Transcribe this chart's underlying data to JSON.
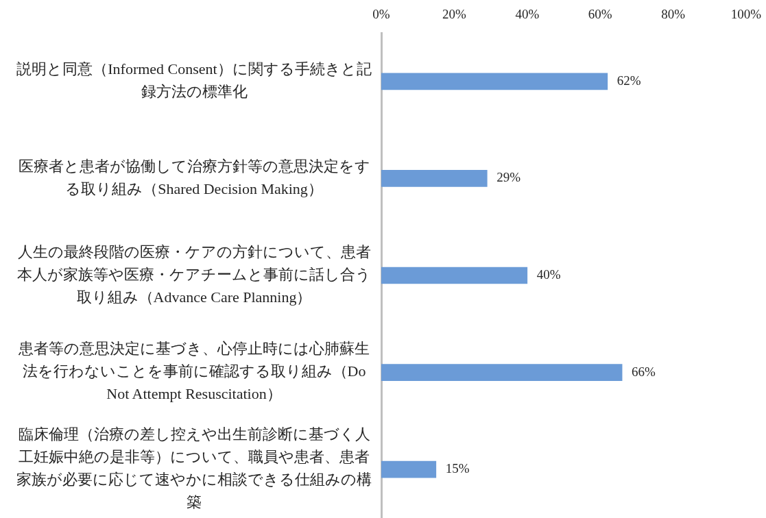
{
  "chart_data": {
    "type": "bar",
    "orientation": "horizontal",
    "categories": [
      "説明と同意（Informed Consent）に関する手続きと記録方法の標準化",
      "医療者と患者が協働して治療方針等の意思決定をする取り組み（Shared Decision Making）",
      "人生の最終段階の医療・ケアの方針について、患者本人が家族等や医療・ケアチームと事前に話し合う取り組み（Advance Care Planning）",
      "患者等の意思決定に基づき、心停止時には心肺蘇生法を行わないことを事前に確認する取り組み（Do Not Attempt Resuscitation）",
      "臨床倫理（治療の差し控えや出生前診断に基づく人工妊娠中絶の是非等）について、職員や患者、患者家族が必要に応じて速やかに相談できる仕組みの構築"
    ],
    "values": [
      62,
      29,
      40,
      66,
      15
    ],
    "value_labels": [
      "62%",
      "29%",
      "40%",
      "66%",
      "15%"
    ],
    "color": "#6b9bd7",
    "xlim": [
      0,
      100
    ],
    "xticks": [
      {
        "value": 0,
        "label": "0%"
      },
      {
        "value": 20,
        "label": "20%"
      },
      {
        "value": 40,
        "label": "40%"
      },
      {
        "value": 60,
        "label": "60%"
      },
      {
        "value": 80,
        "label": "80%"
      },
      {
        "value": 100,
        "label": "100%"
      }
    ]
  }
}
